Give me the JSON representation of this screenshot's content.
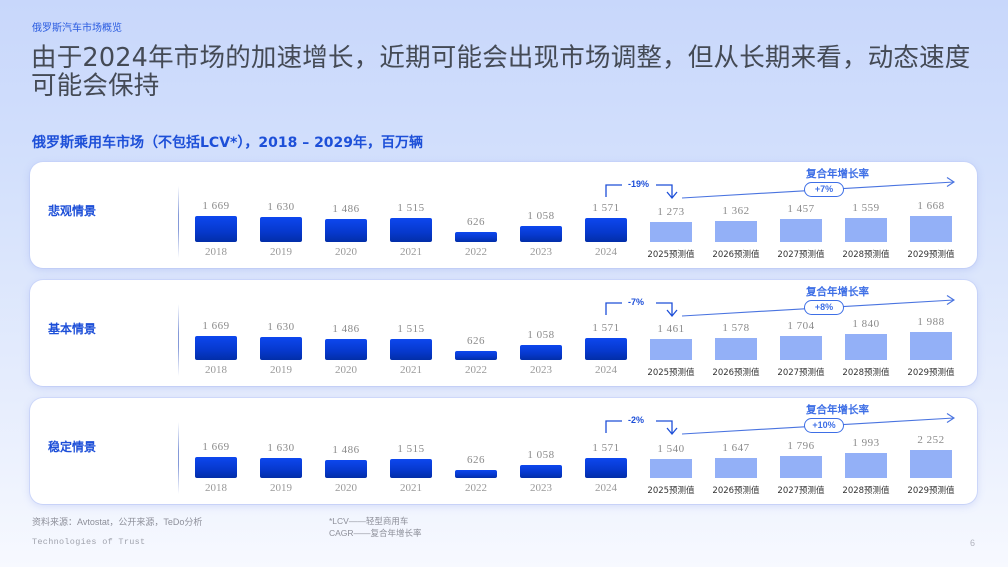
{
  "header": {
    "breadcrumb": "俄罗斯汽车市场概览",
    "title": "由于2024年市场的加速增长，近期可能会出现市场调整，但从长期来看，动态速度可能会保持",
    "chart_title": "俄罗斯乘用车市场（不包括LCV*），2018 – 2029年，百万辆"
  },
  "colors": {
    "accent": "#1d4fd8",
    "historical_bar": "#0638cc",
    "forecast_bar": "#93b0f7",
    "cagr_line": "#3e6fe6"
  },
  "chart_data": {
    "type": "bar",
    "title": "俄罗斯乘用车市场（不包括LCV*），2018 – 2029年，百万辆",
    "categories": [
      "2018",
      "2019",
      "2020",
      "2021",
      "2022",
      "2023",
      "2024",
      "2025预测值",
      "2026预测值",
      "2027预测值",
      "2028预测值",
      "2029预测值"
    ],
    "historical_count": 7,
    "series": [
      {
        "name": "悲观情景",
        "values": [
          1669,
          1630,
          1486,
          1515,
          626,
          1058,
          1571,
          1273,
          1362,
          1457,
          1559,
          1668
        ],
        "value_labels": [
          "1 669",
          "1 630",
          "1 486",
          "1 515",
          "626",
          "1 058",
          "1 571",
          "1 273",
          "1 362",
          "1 457",
          "1 559",
          "1 668"
        ],
        "change_2025": "-19%",
        "cagr": "+7%",
        "cagr_label": "复合年增长率"
      },
      {
        "name": "基本情景",
        "values": [
          1669,
          1630,
          1486,
          1515,
          626,
          1058,
          1571,
          1461,
          1578,
          1704,
          1840,
          1988
        ],
        "value_labels": [
          "1 669",
          "1 630",
          "1 486",
          "1 515",
          "626",
          "1 058",
          "1 571",
          "1 461",
          "1 578",
          "1 704",
          "1 840",
          "1 988"
        ],
        "change_2025": "-7%",
        "cagr": "+8%",
        "cagr_label": "复合年增长率"
      },
      {
        "name": "稳定情景",
        "values": [
          1669,
          1630,
          1486,
          1515,
          626,
          1058,
          1571,
          1540,
          1647,
          1796,
          1993,
          2252
        ],
        "value_labels": [
          "1 669",
          "1 630",
          "1 486",
          "1 515",
          "626",
          "1 058",
          "1 571",
          "1 540",
          "1 647",
          "1 796",
          "1 993",
          "2 252"
        ],
        "change_2025": "-2%",
        "cagr": "+10%",
        "cagr_label": "复合年增长率"
      }
    ],
    "xlabel": "",
    "ylabel": "百万辆",
    "grid": false,
    "legend": "none"
  },
  "footer": {
    "source": "资料来源：Avtostat，公开来源，TeDo分析",
    "notes": [
      "*LCV——轻型商用车",
      "CAGR——复合年增长率"
    ],
    "tagline": "Technologies of Trust",
    "page_number": "6"
  }
}
